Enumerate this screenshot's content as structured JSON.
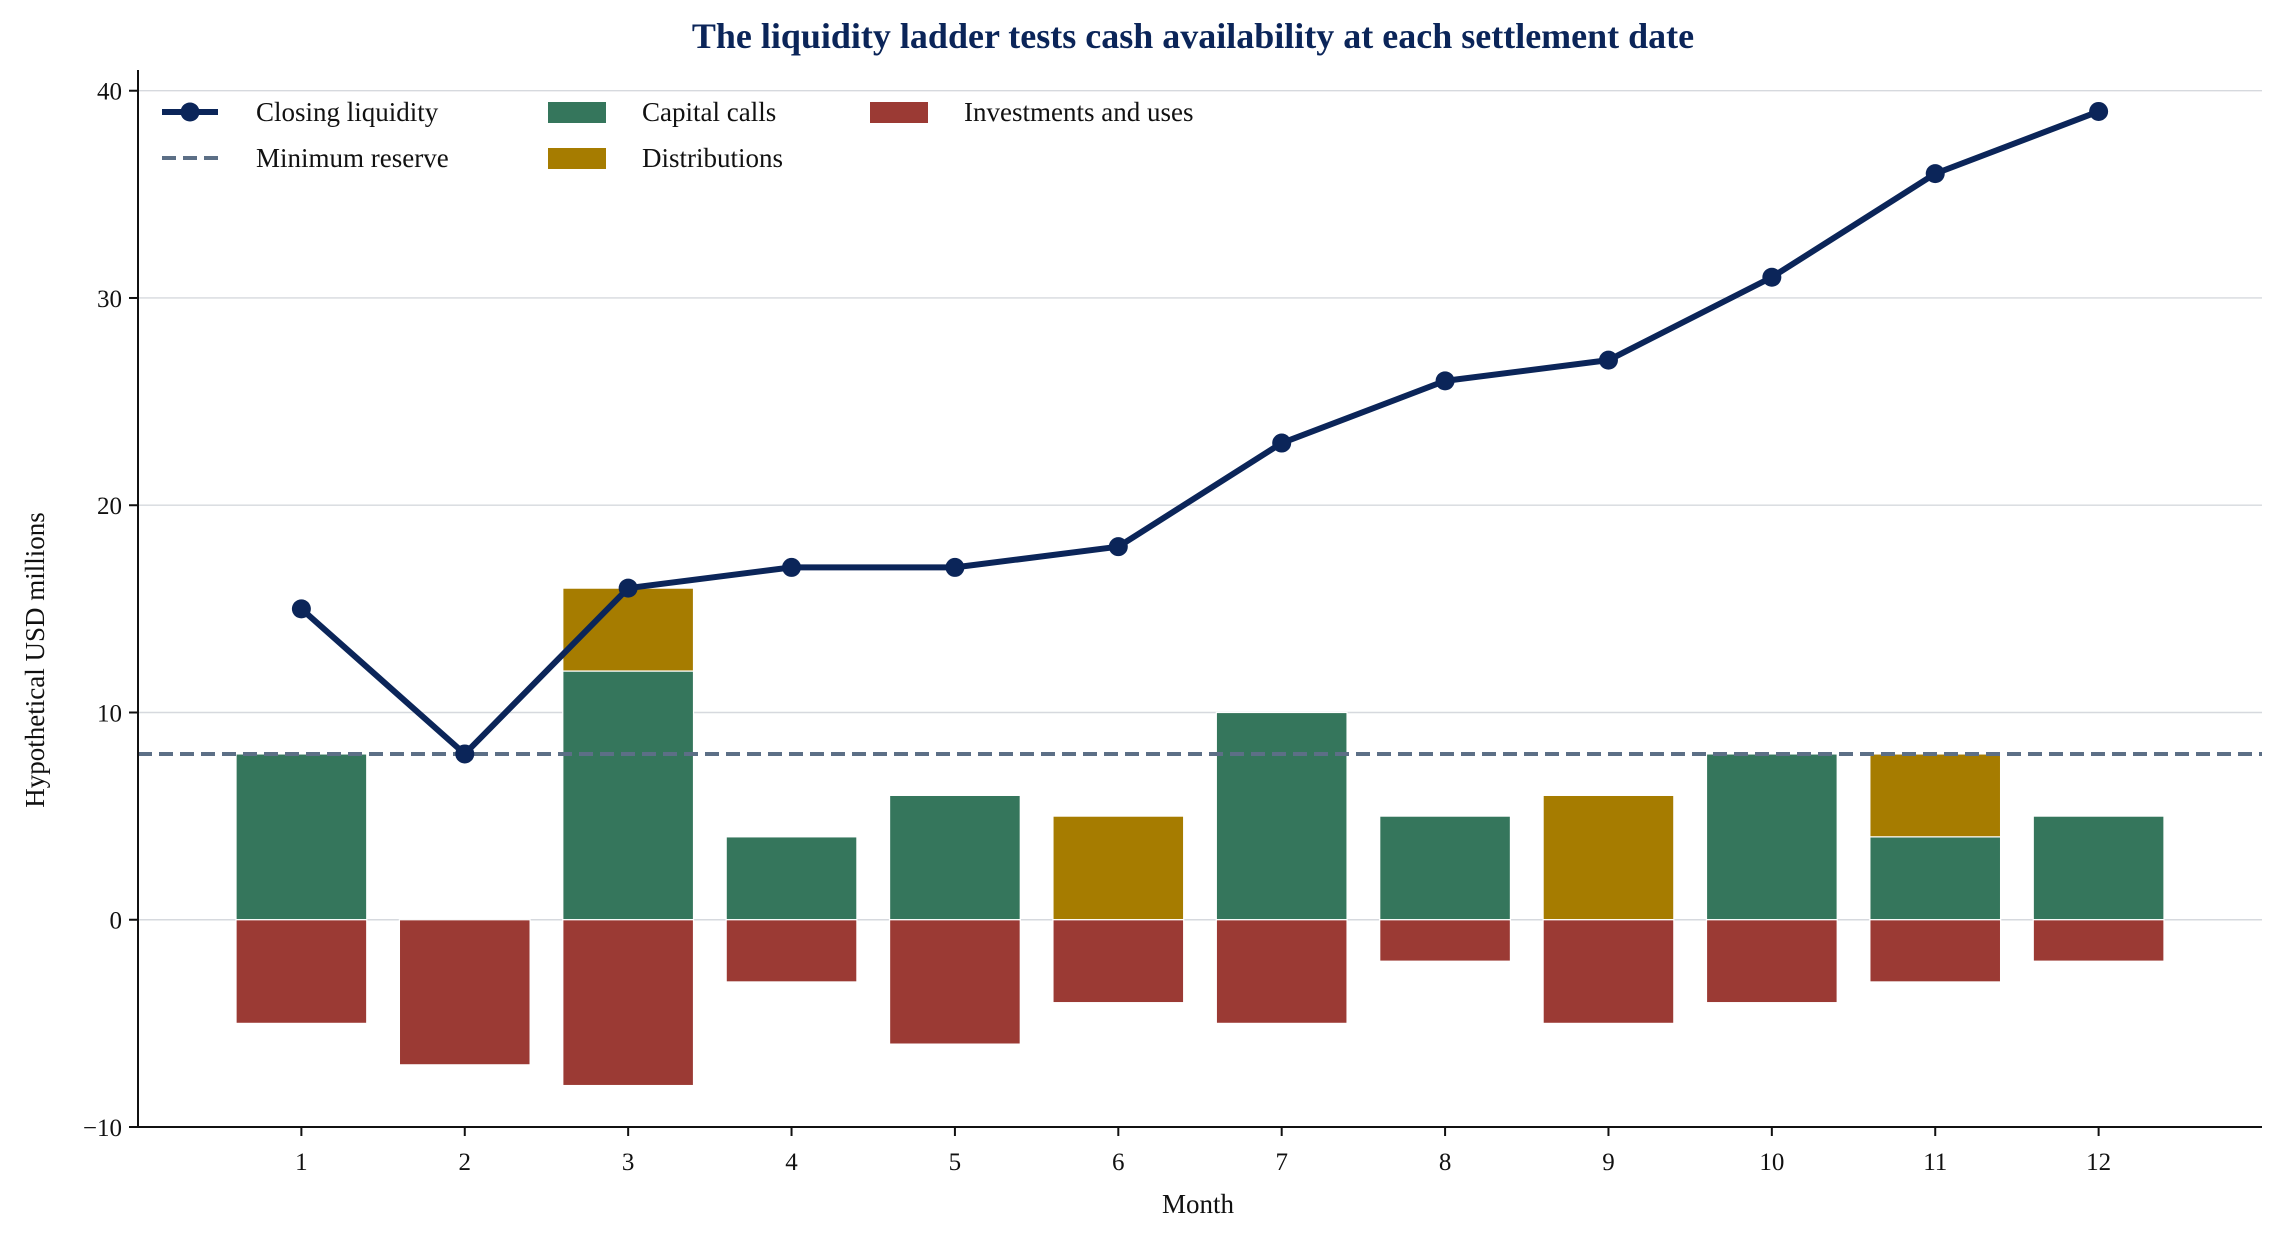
{
  "chart_data": {
    "type": "bar",
    "title": "The liquidity ladder tests cash availability at each settlement date",
    "xlabel": "Month",
    "ylabel": "Hypothetical USD millions",
    "categories": [
      "1",
      "2",
      "3",
      "4",
      "5",
      "6",
      "7",
      "8",
      "9",
      "10",
      "11",
      "12"
    ],
    "x": [
      1,
      2,
      3,
      4,
      5,
      6,
      7,
      8,
      9,
      10,
      11,
      12
    ],
    "ylim": [
      -10,
      41
    ],
    "yticks": [
      -10,
      0,
      10,
      20,
      30,
      40
    ],
    "ytick_labels": [
      "−10",
      "0",
      "10",
      "20",
      "30",
      "40"
    ],
    "grid": "horizontal",
    "legend_position": "top-left",
    "series": [
      {
        "name": "Capital calls",
        "type": "bar",
        "color": "#35765c",
        "values": [
          8,
          0,
          12,
          4,
          6,
          0,
          10,
          5,
          0,
          8,
          4,
          5
        ]
      },
      {
        "name": "Distributions",
        "type": "bar",
        "color": "#a67c00",
        "values": [
          0,
          0,
          4,
          0,
          0,
          5,
          0,
          0,
          6,
          0,
          4,
          0
        ]
      },
      {
        "name": "Investments and uses",
        "type": "bar",
        "color": "#9b3a34",
        "values": [
          -5,
          -7,
          -8,
          -3,
          -6,
          -4,
          -5,
          -2,
          -5,
          -4,
          -3,
          -2
        ]
      },
      {
        "name": "Closing liquidity",
        "type": "line",
        "color": "#0b2559",
        "values": [
          15,
          8,
          16,
          17,
          17,
          18,
          23,
          26,
          27,
          31,
          36,
          39
        ]
      },
      {
        "name": "Minimum reserve",
        "type": "hline",
        "color": "#5c6f86",
        "value": 8
      }
    ]
  }
}
